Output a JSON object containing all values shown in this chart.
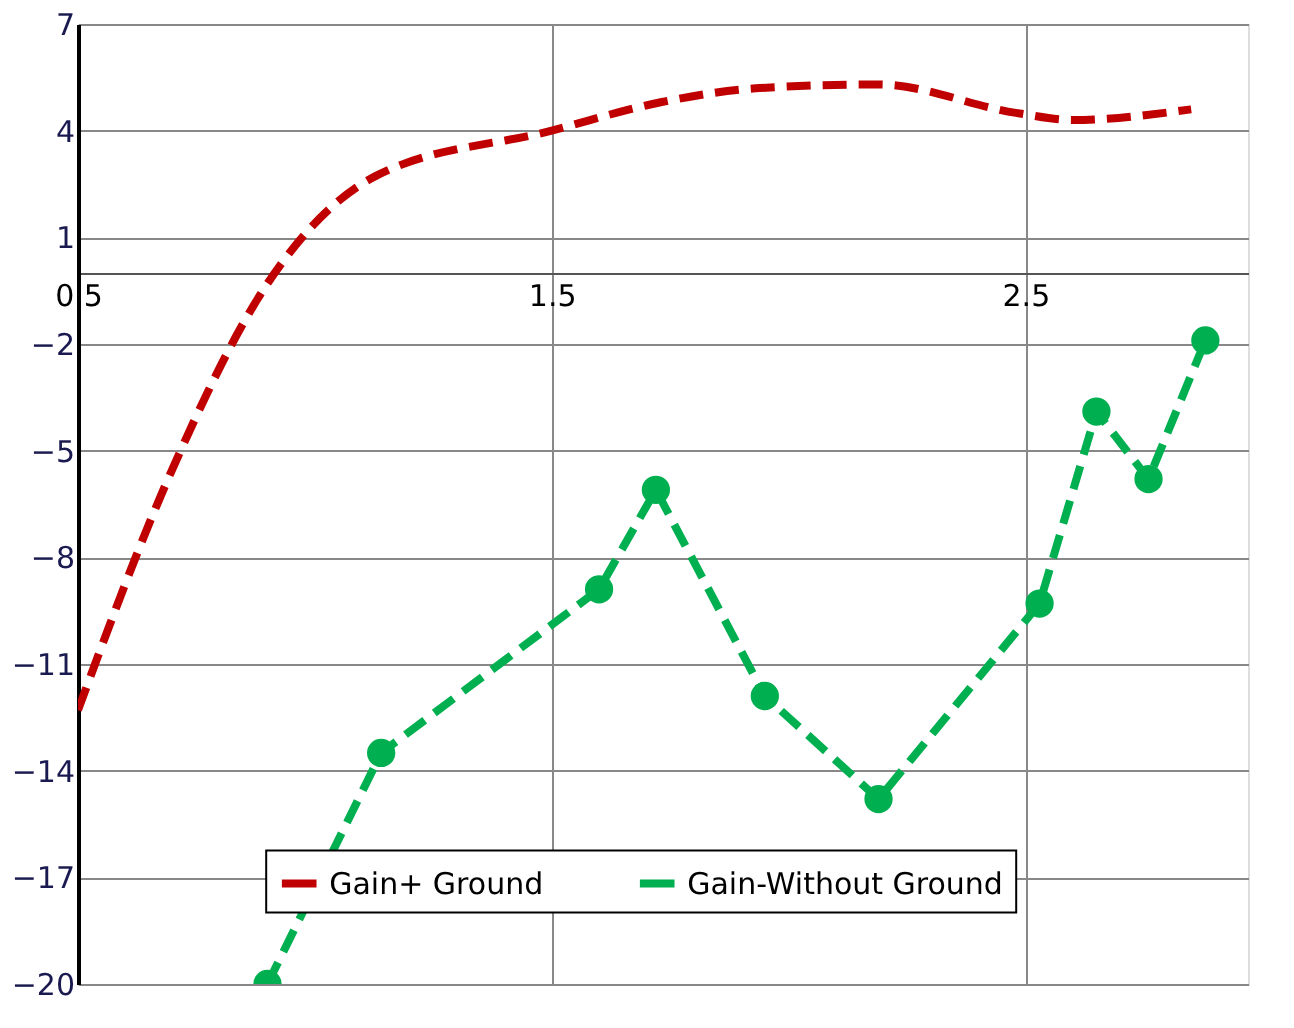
{
  "chart_data": {
    "type": "line",
    "xlim": [
      0.5,
      2.97
    ],
    "xticks": [
      0.5,
      1.5,
      2.5
    ],
    "ylim": [
      -20,
      7
    ],
    "yticks": [
      -20,
      -17,
      -14,
      -11,
      -8,
      -5,
      -2,
      1,
      4,
      7
    ],
    "grid": true,
    "legend": "bottom",
    "series": [
      {
        "name": "Gain+ Ground",
        "color": "#c00000",
        "line_style": "dashed",
        "marker": "none",
        "x": [
          0.5,
          0.69,
          0.9,
          1.125,
          1.5,
          1.73,
          1.94,
          2.19,
          2.48,
          2.6,
          2.85
        ],
        "values": [
          -12.3,
          -5.8,
          -0.3,
          2.7,
          4.0,
          4.8,
          5.2,
          5.3,
          4.5,
          4.3,
          4.6
        ]
      },
      {
        "name": "Gain-Without Ground",
        "color": "#00b050",
        "line_style": "dashed",
        "marker": "circle",
        "x": [
          0.9,
          1.14,
          1.6,
          1.72,
          1.95,
          2.19,
          2.53,
          2.65,
          2.76,
          2.88
        ],
        "values": [
          -20,
          -13.5,
          -8.9,
          -6.1,
          -11.9,
          -14.8,
          -9.3,
          -3.9,
          -5.8,
          -1.9
        ]
      }
    ]
  }
}
